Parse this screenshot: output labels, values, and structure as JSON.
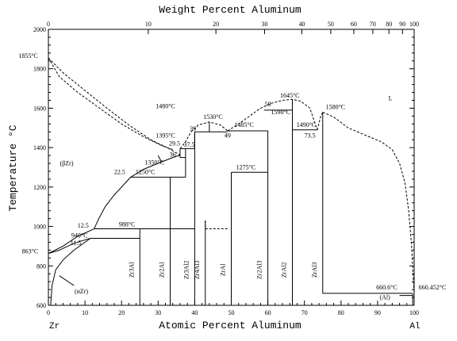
{
  "diagram": {
    "top_axis_title": "Weight Percent Aluminum",
    "bottom_axis_title": "Atomic Percent Aluminum",
    "y_axis_title": "Temperature °C",
    "left_element": "Zr",
    "right_element": "Al",
    "x_range": [
      0,
      100
    ],
    "y_range": [
      600,
      2000
    ]
  },
  "chart_data": {
    "type": "phase-diagram",
    "x_ticks": [
      "0",
      "10",
      "20",
      "30",
      "40",
      "50",
      "60",
      "70",
      "80",
      "90",
      "100"
    ],
    "y_ticks": [
      "600",
      "800",
      "1000",
      "1200",
      "1400",
      "1600",
      "1800",
      "2000"
    ],
    "top_ticks": [
      {
        "wt": 0,
        "at": 0
      },
      {
        "wt": 10,
        "at": 27.3
      },
      {
        "wt": 20,
        "at": 45.8
      },
      {
        "wt": 30,
        "at": 59.1
      },
      {
        "wt": 40,
        "at": 69.3
      },
      {
        "wt": 50,
        "at": 77.2
      },
      {
        "wt": 60,
        "at": 83.5
      },
      {
        "wt": 70,
        "at": 88.7
      },
      {
        "wt": 80,
        "at": 93.1
      },
      {
        "wt": 90,
        "at": 96.8
      },
      {
        "wt": 100,
        "at": 100
      }
    ],
    "phase_labels": [
      {
        "text": "L",
        "x": 93.5,
        "y": 1640
      },
      {
        "text": "(βZr)",
        "x": 5,
        "y": 1310
      },
      {
        "text": "(αZr)",
        "x": 9,
        "y": 660
      },
      {
        "text": "(Al)",
        "x": 92,
        "y": 630
      }
    ],
    "compounds": [
      {
        "name": "Zr3Al",
        "x": 25
      },
      {
        "name": "Zr2Al",
        "x": 33.3
      },
      {
        "name": "Zr3Al2",
        "x": 40
      },
      {
        "name": "Zr4Al3",
        "x": 42.9
      },
      {
        "name": "ZrAl",
        "x": 50
      },
      {
        "name": "Zr2Al3",
        "x": 60
      },
      {
        "name": "ZrAl2",
        "x": 66.7
      },
      {
        "name": "ZrAl3",
        "x": 75
      }
    ],
    "annotations": [
      {
        "text": "1855°C",
        "x": -5.5,
        "y": 1855
      },
      {
        "text": "863°C",
        "x": -5,
        "y": 863
      },
      {
        "text": "12.5",
        "x": 9.5,
        "y": 995
      },
      {
        "text": "940°C",
        "x": 8.5,
        "y": 944
      },
      {
        "text": "11.5",
        "x": 7.5,
        "y": 905
      },
      {
        "text": "988°C",
        "x": 21.5,
        "y": 1000
      },
      {
        "text": "22.5",
        "x": 19.5,
        "y": 1265
      },
      {
        "text": "1250°C",
        "x": 26.5,
        "y": 1265
      },
      {
        "text": "36",
        "x": 34,
        "y": 1355
      },
      {
        "text": "1350°C",
        "x": 29,
        "y": 1315
      },
      {
        "text": "29.5",
        "x": 34.5,
        "y": 1410
      },
      {
        "text": "1395°C",
        "x": 32,
        "y": 1450
      },
      {
        "text": "37.5",
        "x": 38.5,
        "y": 1405
      },
      {
        "text": "39",
        "x": 39.5,
        "y": 1485
      },
      {
        "text": "1480°C",
        "x": 32,
        "y": 1600
      },
      {
        "text": "1530°C",
        "x": 45,
        "y": 1545
      },
      {
        "text": "1485°C",
        "x": 53.5,
        "y": 1505
      },
      {
        "text": "49",
        "x": 49,
        "y": 1450
      },
      {
        "text": "59",
        "x": 60,
        "y": 1610
      },
      {
        "text": "1645°C",
        "x": 66,
        "y": 1655
      },
      {
        "text": "1590°C",
        "x": 63.5,
        "y": 1570
      },
      {
        "text": "1490°C",
        "x": 70.5,
        "y": 1505
      },
      {
        "text": "73.5",
        "x": 71.5,
        "y": 1450
      },
      {
        "text": "1580°C",
        "x": 78.5,
        "y": 1595
      },
      {
        "text": "1275°C",
        "x": 54,
        "y": 1290
      },
      {
        "text": "660.6°C",
        "x": 92.5,
        "y": 680
      },
      {
        "text": "660.452°C",
        "x": 105,
        "y": 680
      }
    ]
  }
}
